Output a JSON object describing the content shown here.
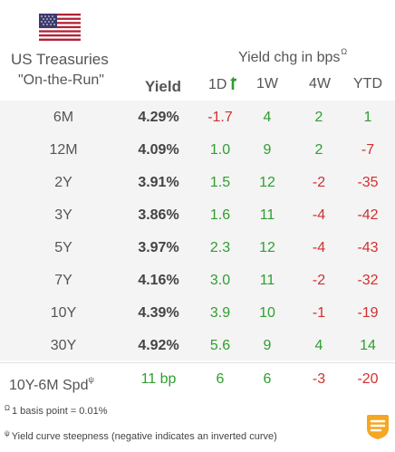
{
  "header": {
    "title": "US Treasuries",
    "subtitle": "\"On-the-Run\"",
    "change_title": "Yield chg in bps",
    "change_title_sup": "Ω",
    "col_yield": "Yield",
    "col_1d": "1D",
    "col_1w": "1W",
    "col_4w": "4W",
    "col_ytd": "YTD"
  },
  "rows": [
    {
      "maturity": "6M",
      "yield": "4.29%",
      "d1": "-1.7",
      "w1": "4",
      "w4": "2",
      "ytd": "1"
    },
    {
      "maturity": "12M",
      "yield": "4.09%",
      "d1": "1.0",
      "w1": "9",
      "w4": "2",
      "ytd": "-7"
    },
    {
      "maturity": "2Y",
      "yield": "3.91%",
      "d1": "1.5",
      "w1": "12",
      "w4": "-2",
      "ytd": "-35"
    },
    {
      "maturity": "3Y",
      "yield": "3.86%",
      "d1": "1.6",
      "w1": "11",
      "w4": "-4",
      "ytd": "-42"
    },
    {
      "maturity": "5Y",
      "yield": "3.97%",
      "d1": "2.3",
      "w1": "12",
      "w4": "-4",
      "ytd": "-43"
    },
    {
      "maturity": "7Y",
      "yield": "4.16%",
      "d1": "3.0",
      "w1": "11",
      "w4": "-2",
      "ytd": "-32"
    },
    {
      "maturity": "10Y",
      "yield": "4.39%",
      "d1": "3.9",
      "w1": "10",
      "w4": "-1",
      "ytd": "-19"
    },
    {
      "maturity": "30Y",
      "yield": "4.92%",
      "d1": "5.6",
      "w1": "9",
      "w4": "4",
      "ytd": "14"
    }
  ],
  "spread": {
    "label": "10Y-6M Spd",
    "label_sup": "ψ",
    "yield": "11 bp",
    "d1": "6",
    "w1": "6",
    "w4": "-3",
    "ytd": "-20"
  },
  "notes": {
    "note1_sup": "Ω",
    "note1": "1 basis point = 0.01%",
    "note2_sup": "ψ",
    "note2": "Yield curve steepness (negative indicates an inverted curve)"
  },
  "colors": {
    "positive": "#2f9e2f",
    "negative": "#d03030",
    "row_background": "#f4f4f4",
    "logo_accent": "#f5a623"
  },
  "icons": {
    "flag": "us-flag-icon",
    "turn": "turn-arrow-icon",
    "logo": "brand-logo-icon"
  }
}
